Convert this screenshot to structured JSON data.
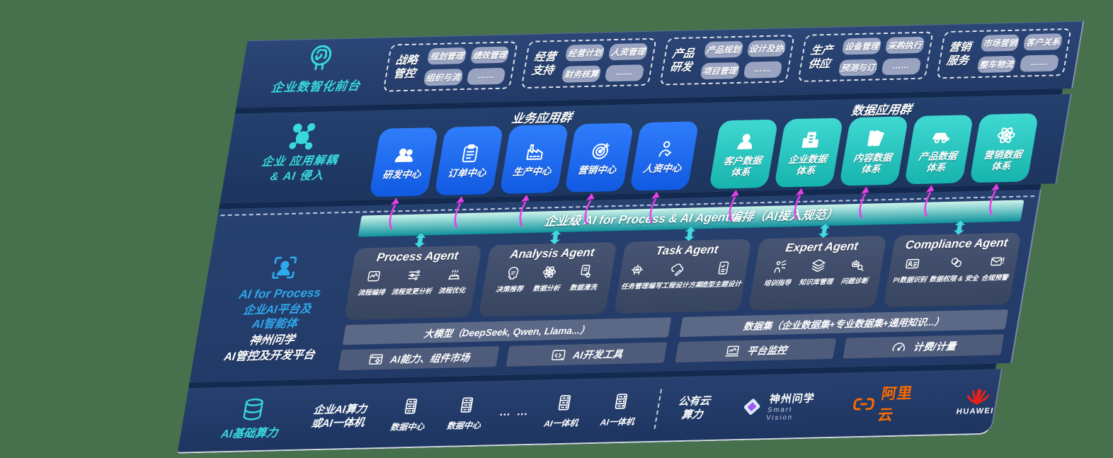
{
  "colors": {
    "page_bg": "#47714D",
    "accent_cyan": "#38D9DD",
    "accent_blue": "#2FA8EC",
    "magenta": "#E93FE9",
    "teal_arrow": "#43D8DE",
    "aliyun_orange": "#FF6A00",
    "huawei_red": "#E2231A"
  },
  "front": {
    "label": "企业数智化前台",
    "icon": "brain-head-icon",
    "groups": [
      {
        "name": "战略管控",
        "items": [
          "规划管理",
          "绩效管理",
          "组织与流程",
          "……"
        ]
      },
      {
        "name": "经营支持",
        "items": [
          "经营计划",
          "人资管理",
          "财务核算",
          "……"
        ]
      },
      {
        "name": "产品研发",
        "items": [
          "产品规划",
          "设计及协同",
          "项目管理",
          "……"
        ]
      },
      {
        "name": "生产供应",
        "items": [
          "设备管理",
          "采购执行",
          "预测与订单",
          "……"
        ]
      },
      {
        "name": "营销服务",
        "items": [
          "市场营销",
          "客户关系",
          "整车物流",
          "……"
        ]
      }
    ]
  },
  "apps": {
    "label_line1": "企业 应用解耦",
    "label_line2": "& AI 侵入",
    "icon": "molecule-icon",
    "business_title": "业务应用群",
    "data_title": "数据应用群",
    "business": [
      {
        "label": "研发中心",
        "icon": "team-icon"
      },
      {
        "label": "订单中心",
        "icon": "clipboard-icon"
      },
      {
        "label": "生产中心",
        "icon": "factory-icon"
      },
      {
        "label": "营销中心",
        "icon": "target-icon"
      },
      {
        "label": "人资中心",
        "icon": "hr-icon"
      }
    ],
    "data": [
      {
        "label": "客户数据体系",
        "icon": "person-icon"
      },
      {
        "label": "企业数据体系",
        "icon": "building-icon"
      },
      {
        "label": "内容数据体系",
        "icon": "books-icon"
      },
      {
        "label": "产品数据体系",
        "icon": "car-icon"
      },
      {
        "label": "营销数据体系",
        "icon": "atom-icon"
      }
    ]
  },
  "ai_bar": {
    "text": "企业级 AI for Process & AI Agent编排（AI接入规范）"
  },
  "agents": {
    "label_line1": "AI for Process",
    "label_line2": "企业AI平台及",
    "label_line3": "AI智能体",
    "icon": "person-frame-icon",
    "cards": [
      {
        "title": "Process Agent",
        "items": [
          {
            "label": "流程编排",
            "icon": "wave-box-icon"
          },
          {
            "label": "流程变更分析",
            "icon": "sliders-icon"
          },
          {
            "label": "流程优化",
            "icon": "machine-icon"
          }
        ]
      },
      {
        "title": "Analysis Agent",
        "items": [
          {
            "label": "决策推荐",
            "icon": "head-chat-icon"
          },
          {
            "label": "数据分析",
            "icon": "atom-icon"
          },
          {
            "label": "数据清洗",
            "icon": "doc-clean-icon"
          }
        ]
      },
      {
        "title": "Task Agent",
        "items": [
          {
            "label": "任务管理",
            "icon": "robot-icon"
          },
          {
            "label": "编写工程设计方案",
            "icon": "cloud-pen-icon"
          },
          {
            "label": "造型主题设计",
            "icon": "tablet-check-icon"
          }
        ]
      },
      {
        "title": "Expert Agent",
        "items": [
          {
            "label": "培训指导",
            "icon": "trainer-icon"
          },
          {
            "label": "知识库管理",
            "icon": "layers-icon"
          },
          {
            "label": "问题诊断",
            "icon": "diagnose-icon"
          }
        ]
      },
      {
        "title": "Compliance Agent",
        "items": [
          {
            "label": "PI数据识别",
            "icon": "id-card-icon"
          },
          {
            "label": "数据权限 & 安全",
            "icon": "links-icon"
          },
          {
            "label": "合规预警",
            "icon": "mail-alert-icon"
          }
        ]
      }
    ]
  },
  "platform": {
    "label_line1": "神州问学",
    "label_line2": "AI管控及开发平台",
    "model_header": "大模型（DeepSeek, Qwen, Llama...）",
    "dataset_header": "数据集（企业数据集+专业数据集+通用知识...）",
    "cells": [
      {
        "label": "AI能力、组件市场",
        "icon": "window-gear-icon"
      },
      {
        "label": "AI开发工具",
        "icon": "code-icon"
      },
      {
        "label": "平台监控",
        "icon": "monitor-icon"
      },
      {
        "label": "计费/计量",
        "icon": "gauge-icon"
      }
    ]
  },
  "infra": {
    "label": "AI基础算力",
    "icon": "database-icon",
    "compute_line1": "企业AI算力",
    "compute_line2": "或AI一体机",
    "nodes": [
      {
        "label": "数据中心",
        "icon": "server-icon"
      },
      {
        "label": "数据中心",
        "icon": "server-icon"
      }
    ],
    "dots": "… …",
    "units": [
      {
        "label": "AI一体机",
        "icon": "server-icon"
      },
      {
        "label": "AI一体机",
        "icon": "server-icon"
      }
    ],
    "cloud_line1": "公有云",
    "cloud_line2": "算力",
    "logos": [
      {
        "title": "神州问学",
        "subtitle": "Smart Vision"
      },
      {
        "title": "阿里云"
      },
      {
        "title": "HUAWEI"
      }
    ]
  }
}
